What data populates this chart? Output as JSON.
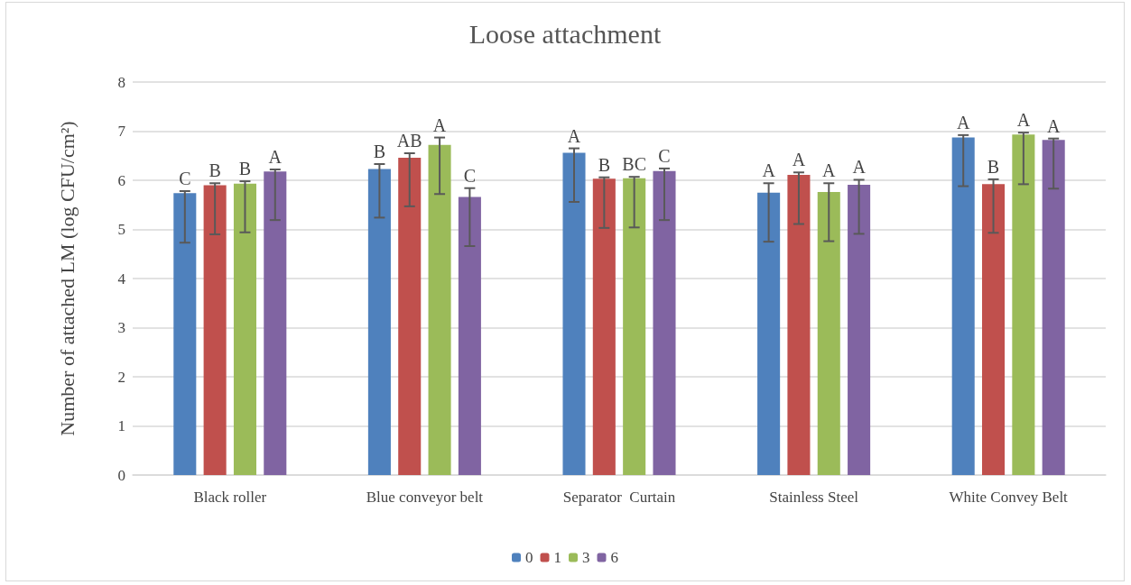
{
  "chart_data": {
    "type": "bar",
    "title": "Loose attachment",
    "ylabel": "Number of attached LM (log CFU/cm²)",
    "categories": [
      "Black roller",
      "Blue conveyor belt",
      "Separator  Curtain",
      "Stainless Steel",
      "White Convey Belt"
    ],
    "series": [
      {
        "name": "0",
        "color": "#4f81bd",
        "values": [
          5.74,
          6.23,
          6.56,
          5.75,
          6.87
        ],
        "errors": [
          [
            4.73,
            5.78
          ],
          [
            5.24,
            6.33
          ],
          [
            5.56,
            6.65
          ],
          [
            4.75,
            5.94
          ],
          [
            5.88,
            6.92
          ]
        ],
        "value_labels": [
          "C",
          "B",
          "A",
          "A",
          "A"
        ]
      },
      {
        "name": "1",
        "color": "#c0504d",
        "values": [
          5.9,
          6.46,
          6.03,
          6.11,
          5.92
        ],
        "errors": [
          [
            4.9,
            5.94
          ],
          [
            5.47,
            6.55
          ],
          [
            5.03,
            6.06
          ],
          [
            5.11,
            6.16
          ],
          [
            4.93,
            6.02
          ]
        ],
        "value_labels": [
          "B",
          "AB",
          "B",
          "A",
          "B"
        ]
      },
      {
        "name": "3",
        "color": "#9bbb59",
        "values": [
          5.93,
          6.72,
          6.04,
          5.76,
          6.93
        ],
        "errors": [
          [
            4.94,
            5.98
          ],
          [
            5.72,
            6.87
          ],
          [
            5.04,
            6.07
          ],
          [
            4.76,
            5.94
          ],
          [
            5.92,
            6.97
          ]
        ],
        "value_labels": [
          "B",
          "A",
          "BC",
          "A",
          "A"
        ]
      },
      {
        "name": "6",
        "color": "#8064a2",
        "values": [
          6.18,
          5.66,
          6.19,
          5.91,
          6.82
        ],
        "errors": [
          [
            5.19,
            6.22
          ],
          [
            4.66,
            5.84
          ],
          [
            5.19,
            6.24
          ],
          [
            4.91,
            6.01
          ],
          [
            5.83,
            6.85
          ]
        ],
        "value_labels": [
          "A",
          "C",
          "C",
          "A",
          "A"
        ]
      }
    ],
    "ylim": [
      0,
      8
    ],
    "yticks": [
      0,
      1,
      2,
      3,
      4,
      5,
      6,
      7,
      8
    ],
    "grid": "y",
    "legend": "bottom"
  }
}
